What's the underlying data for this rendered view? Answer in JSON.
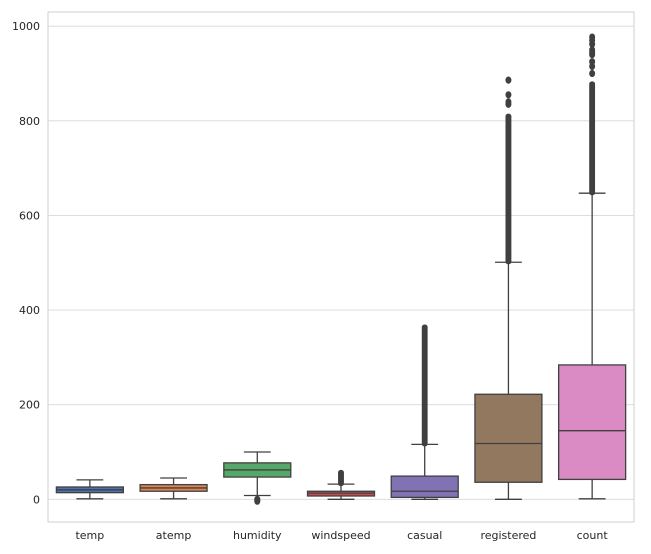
{
  "chart_data": {
    "type": "box",
    "title": "",
    "xlabel": "",
    "ylabel": "",
    "ylim": [
      -48,
      1030
    ],
    "grid": true,
    "y_ticks": [
      0,
      200,
      400,
      600,
      800,
      1000
    ],
    "categories": [
      "temp",
      "atemp",
      "humidity",
      "windspeed",
      "casual",
      "registered",
      "count"
    ],
    "series": [
      {
        "label": "temp",
        "color": "#4c72b0",
        "whisker_low": 1,
        "q1": 14,
        "median": 20,
        "q3": 26,
        "whisker_high": 41,
        "fliers": []
      },
      {
        "label": "atemp",
        "color": "#dd8452",
        "whisker_low": 1,
        "q1": 17,
        "median": 24,
        "q3": 31,
        "whisker_high": 45,
        "fliers": []
      },
      {
        "label": "humidity",
        "color": "#55a868",
        "whisker_low": 8,
        "q1": 47,
        "median": 62,
        "q3": 77,
        "whisker_high": 100,
        "fliers": [
          0,
          -2,
          -4
        ]
      },
      {
        "label": "windspeed",
        "color": "#c44e52",
        "whisker_low": 0,
        "q1": 7,
        "median": 13,
        "q3": 17,
        "whisker_high": 32,
        "flier_range": [
          33,
          57
        ]
      },
      {
        "label": "casual",
        "color": "#8172b3",
        "whisker_low": 0,
        "q1": 4,
        "median": 17,
        "q3": 49,
        "whisker_high": 116,
        "flier_range": [
          117,
          367
        ]
      },
      {
        "label": "registered",
        "color": "#937860",
        "whisker_low": 0,
        "q1": 36,
        "median": 118,
        "q3": 222,
        "whisker_high": 501,
        "flier_range": [
          502,
          810
        ],
        "fliers": [
          835,
          840,
          855,
          886
        ]
      },
      {
        "label": "count",
        "color": "#da8bc3",
        "whisker_low": 1,
        "q1": 42,
        "median": 145,
        "q3": 284,
        "whisker_high": 647,
        "flier_range": [
          648,
          880
        ],
        "fliers": [
          900,
          915,
          925,
          940,
          945,
          950,
          962,
          970,
          977
        ]
      }
    ]
  }
}
